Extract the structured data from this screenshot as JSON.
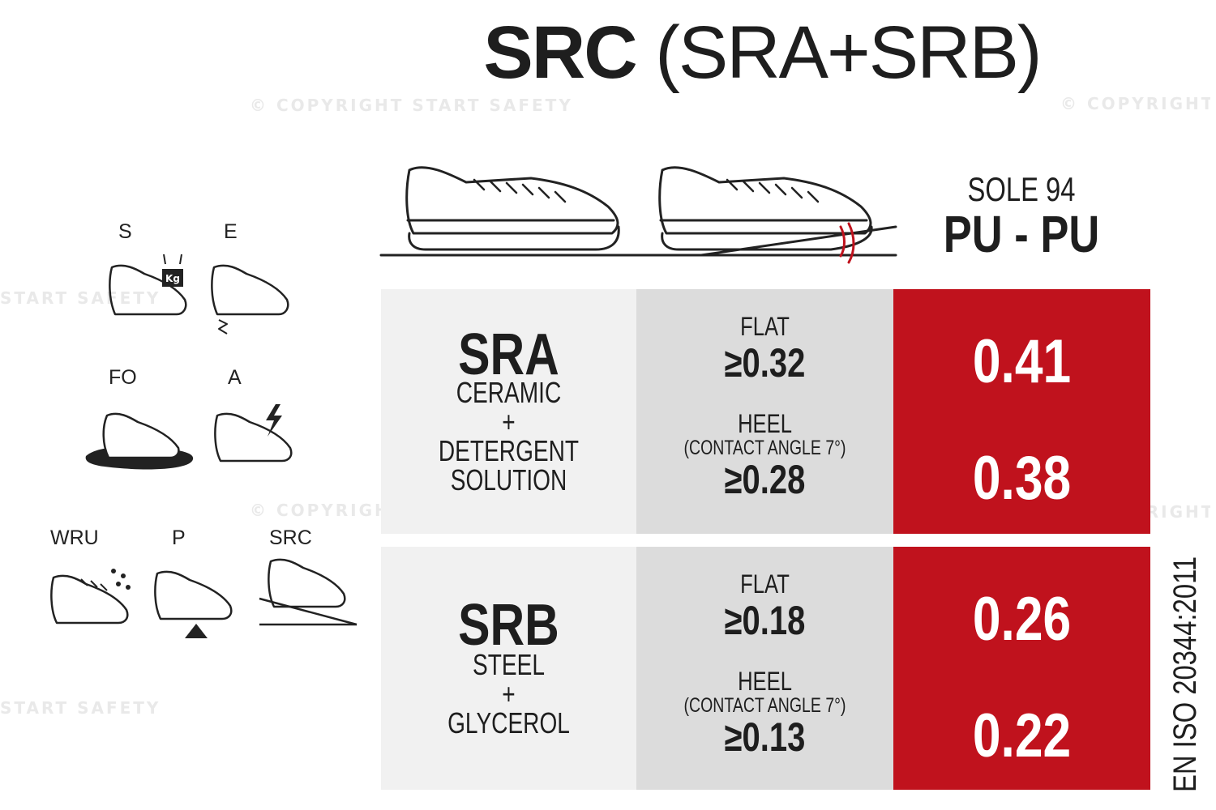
{
  "title": {
    "bold": "SRC",
    "light": "(SRA+SRB)"
  },
  "watermark": {
    "copyright": "© COPYRIGHT START SAFETY",
    "brand": "START SAFETY"
  },
  "sole": {
    "label": "SOLE 94",
    "material": "PU - PU"
  },
  "standard": "EN ISO 20344:2011",
  "icons": [
    "S",
    "E",
    "FO",
    "A",
    "WRU",
    "P",
    "SRC"
  ],
  "icon_names": [
    "shoe-weight-icon",
    "shoe-energy-icon",
    "shoe-oil-icon",
    "shoe-antistatic-icon",
    "shoe-water-icon",
    "shoe-puncture-icon",
    "shoe-slip-icon"
  ],
  "rows": [
    {
      "code": "SRA",
      "conditions": [
        "CERAMIC",
        "+",
        "DETERGENT",
        "SOLUTION"
      ],
      "flat_label": "FLAT",
      "flat_req": "≥0.32",
      "heel_label": "HEEL",
      "heel_note": "(CONTACT ANGLE 7°)",
      "heel_req": "≥0.28",
      "flat_result": "0.41",
      "heel_result": "0.38"
    },
    {
      "code": "SRB",
      "conditions": [
        "STEEL",
        "+",
        "GLYCEROL"
      ],
      "flat_label": "FLAT",
      "flat_req": "≥0.18",
      "heel_label": "HEEL",
      "heel_note": "(CONTACT ANGLE 7°)",
      "heel_req": "≥0.13",
      "flat_result": "0.26",
      "heel_result": "0.22"
    }
  ],
  "colors": {
    "result_bg": "#c0121d",
    "col1_bg": "#f1f1f1",
    "col2_bg": "#dcdcdc",
    "text": "#1e1e1e"
  }
}
